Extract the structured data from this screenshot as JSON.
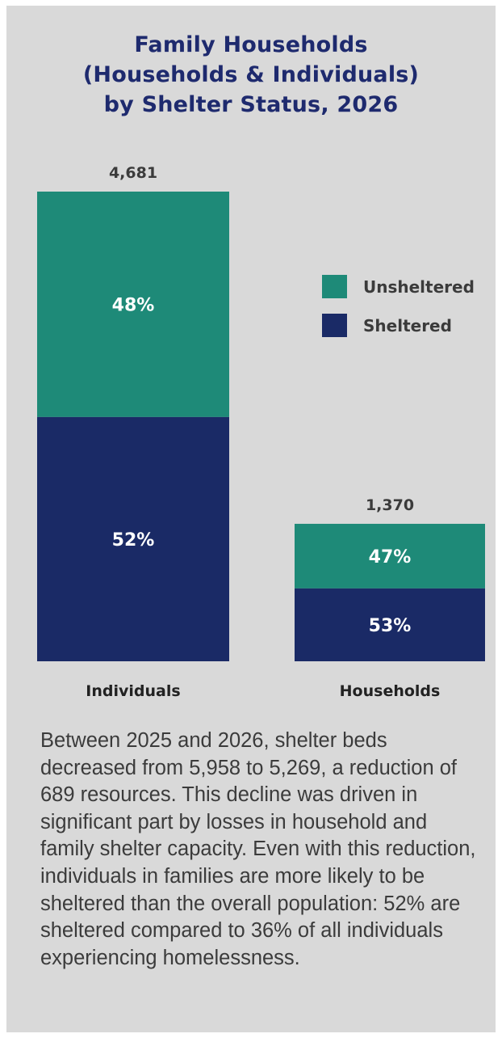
{
  "colors": {
    "background": "#d9d9d9",
    "title": "#1e2a6e",
    "unsheltered": "#1e8a78",
    "sheltered": "#1a2a66",
    "text": "#3b3b3b"
  },
  "chart_data": {
    "type": "bar",
    "stacked": true,
    "normalized_per_bar": false,
    "title": [
      "Family Households",
      "(Households & Individuals)",
      "by Shelter Status, 2026"
    ],
    "categories": [
      "Individuals",
      "Households"
    ],
    "totals": [
      4681,
      1370
    ],
    "total_labels": [
      "4,681",
      "1,370"
    ],
    "series": [
      {
        "name": "Sheltered",
        "values_percent": [
          52,
          53
        ],
        "labels": [
          "52%",
          "53%"
        ],
        "color": "#1a2a66"
      },
      {
        "name": "Unsheltered",
        "values_percent": [
          48,
          47
        ],
        "labels": [
          "48%",
          "47%"
        ],
        "color": "#1e8a78"
      }
    ],
    "legend": {
      "position": "right",
      "order": [
        "Unsheltered",
        "Sheltered"
      ]
    },
    "grid": false
  },
  "paragraph": "Between 2025 and 2026, shelter beds decreased from 5,958 to 5,269, a reduction of 689 resources. This decline was driven in significant part by losses in household and family shelter capacity. Even with this reduction, individuals in families are more likely to be sheltered than the overall population: 52% are sheltered compared to 36% of all individuals experiencing homelessness."
}
